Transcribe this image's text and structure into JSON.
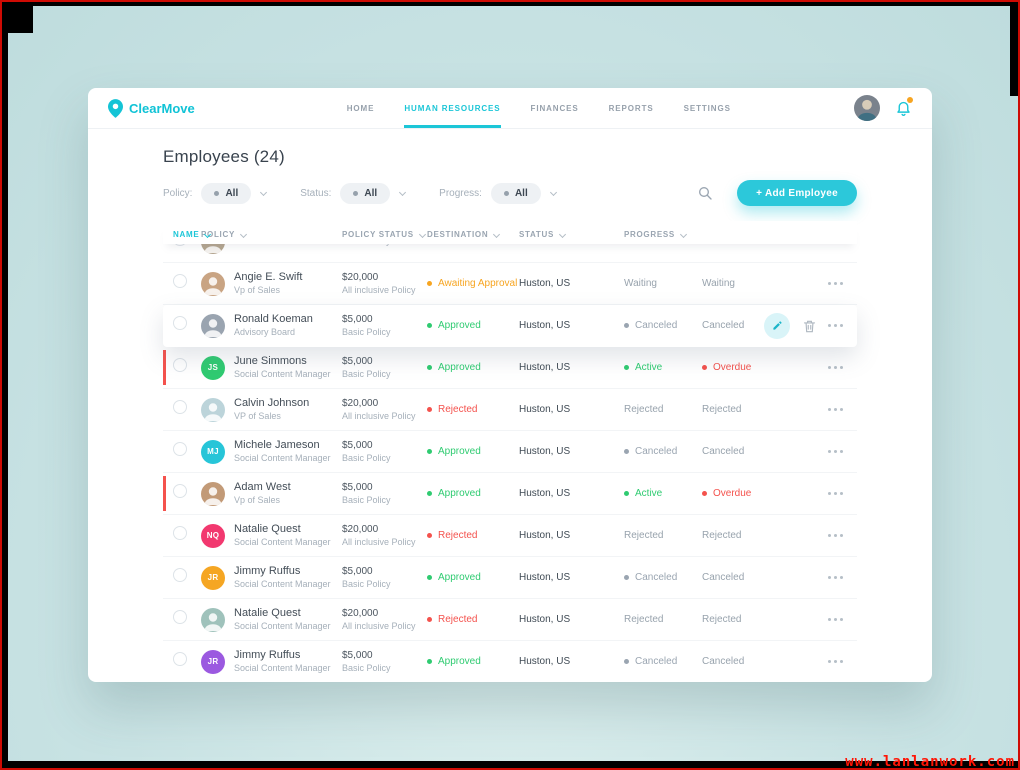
{
  "colors": {
    "teal": "#1cc6d7",
    "green": "#2fcb71",
    "orange": "#f7a521",
    "red": "#f4524d",
    "muted": "#9aa5b1"
  },
  "icons": {
    "logo": "location-pin",
    "notifications": "bell",
    "search": "magnifier",
    "row_menu": "ellipsis",
    "edit": "pencil",
    "delete": "trash",
    "sort": "chevron-down"
  },
  "header": {
    "brand": "ClearMove",
    "nav": [
      {
        "label": "HOME",
        "active": false
      },
      {
        "label": "HUMAN RESOURCES",
        "active": true
      },
      {
        "label": "FINANCES",
        "active": false
      },
      {
        "label": "REPORTS",
        "active": false
      },
      {
        "label": "SETTINGS",
        "active": false
      }
    ]
  },
  "page": {
    "title": "Employees (24)"
  },
  "filters": [
    {
      "label": "Policy:",
      "value": "All"
    },
    {
      "label": "Status:",
      "value": "All"
    },
    {
      "label": "Progress:",
      "value": "All"
    }
  ],
  "toolbar": {
    "add_employee_label": "+ Add Employee"
  },
  "table": {
    "columns": [
      {
        "label": "NAME",
        "active": true
      },
      {
        "label": "POLICY",
        "active": false
      },
      {
        "label": "POLICY STATUS",
        "active": false
      },
      {
        "label": "DESTINATION",
        "active": false
      },
      {
        "label": "STATUS",
        "active": false
      },
      {
        "label": "PROGRESS",
        "active": false
      }
    ],
    "rows": [
      {
        "clipped": true,
        "name": "",
        "title": "CFO",
        "avatar": {
          "type": "photo",
          "color": "#b3a48e"
        },
        "policy_amount": "",
        "policy_name": "Basic Policy",
        "destination": ""
      },
      {
        "name": "Angie E. Swift",
        "title": "Vp of Sales",
        "avatar": {
          "type": "photo",
          "color": "#c9a483"
        },
        "policy_amount": "$20,000",
        "policy_name": "All inclusive Policy",
        "policy_status": {
          "label": "Awaiting Approval",
          "color": "orange",
          "dot": true
        },
        "destination": "Huston, US",
        "status": {
          "label": "Waiting"
        },
        "progress": {
          "label": "Waiting"
        }
      },
      {
        "name": "Ronald Koeman",
        "title": "Advisory Board",
        "avatar": {
          "type": "photo",
          "color": "#9aa4b0"
        },
        "policy_amount": "$5,000",
        "policy_name": "Basic Policy",
        "policy_status": {
          "label": "Approved",
          "color": "green",
          "dot": true
        },
        "destination": "Huston, US",
        "status": {
          "label": "Canceled",
          "color": "muted",
          "dot": true
        },
        "progress": {
          "label": "Canceled"
        },
        "hovered": true,
        "tools": true
      },
      {
        "name": "June Simmons",
        "title": "Social Content Manager",
        "avatar": {
          "type": "initials",
          "initials": "JS",
          "color": "#2fcb71"
        },
        "policy_amount": "$5,000",
        "policy_name": "Basic Policy",
        "policy_status": {
          "label": "Approved",
          "color": "green",
          "dot": true
        },
        "destination": "Huston, US",
        "status": {
          "label": "Active",
          "color": "green",
          "dot": true
        },
        "progress": {
          "label": "Overdue",
          "color": "red",
          "dot": true
        },
        "flagged": true
      },
      {
        "name": "Calvin Johnson",
        "title": "VP of Sales",
        "avatar": {
          "type": "photo",
          "color": "#bcd4da"
        },
        "policy_amount": "$20,000",
        "policy_name": "All inclusive Policy",
        "policy_status": {
          "label": "Rejected",
          "color": "red",
          "dot": true
        },
        "destination": "Huston, US",
        "status": {
          "label": "Rejected"
        },
        "progress": {
          "label": "Rejected"
        }
      },
      {
        "name": "Michele Jameson",
        "title": "Social Content Manager",
        "avatar": {
          "type": "initials",
          "initials": "MJ",
          "color": "#27c5d8"
        },
        "policy_amount": "$5,000",
        "policy_name": "Basic Policy",
        "policy_status": {
          "label": "Approved",
          "color": "green",
          "dot": true
        },
        "destination": "Huston, US",
        "status": {
          "label": "Canceled",
          "color": "muted",
          "dot": true
        },
        "progress": {
          "label": "Canceled"
        }
      },
      {
        "name": "Adam West",
        "title": "Vp of Sales",
        "avatar": {
          "type": "photo",
          "color": "#c29a77"
        },
        "policy_amount": "$5,000",
        "policy_name": "Basic Policy",
        "policy_status": {
          "label": "Approved",
          "color": "green",
          "dot": true
        },
        "destination": "Huston, US",
        "status": {
          "label": "Active",
          "color": "green",
          "dot": true
        },
        "progress": {
          "label": "Overdue",
          "color": "red",
          "dot": true
        },
        "flagged": true
      },
      {
        "name": "Natalie Quest",
        "title": "Social Content Manager",
        "avatar": {
          "type": "initials",
          "initials": "NQ",
          "color": "#f2386f"
        },
        "policy_amount": "$20,000",
        "policy_name": "All inclusive Policy",
        "policy_status": {
          "label": "Rejected",
          "color": "red",
          "dot": true
        },
        "destination": "Huston, US",
        "status": {
          "label": "Rejected"
        },
        "progress": {
          "label": "Rejected"
        }
      },
      {
        "name": "Jimmy Ruffus",
        "title": "Social Content Manager",
        "avatar": {
          "type": "initials",
          "initials": "JR",
          "color": "#f5a623"
        },
        "policy_amount": "$5,000",
        "policy_name": "Basic Policy",
        "policy_status": {
          "label": "Approved",
          "color": "green",
          "dot": true
        },
        "destination": "Huston, US",
        "status": {
          "label": "Canceled",
          "color": "muted",
          "dot": true
        },
        "progress": {
          "label": "Canceled"
        }
      },
      {
        "name": "Natalie Quest",
        "title": "Social Content Manager",
        "avatar": {
          "type": "photo",
          "color": "#9fc2bb"
        },
        "policy_amount": "$20,000",
        "policy_name": "All inclusive Policy",
        "policy_status": {
          "label": "Rejected",
          "color": "red",
          "dot": true
        },
        "destination": "Huston, US",
        "status": {
          "label": "Rejected"
        },
        "progress": {
          "label": "Rejected"
        }
      },
      {
        "name": "Jimmy Ruffus",
        "title": "Social Content Manager",
        "avatar": {
          "type": "initials",
          "initials": "JR",
          "color": "#9b59e0"
        },
        "policy_amount": "$5,000",
        "policy_name": "Basic Policy",
        "policy_status": {
          "label": "Approved",
          "color": "green",
          "dot": true
        },
        "destination": "Huston, US",
        "status": {
          "label": "Canceled",
          "color": "muted",
          "dot": true
        },
        "progress": {
          "label": "Canceled"
        }
      }
    ]
  },
  "frame": {
    "watermark": "www.lanlanwork.com"
  }
}
